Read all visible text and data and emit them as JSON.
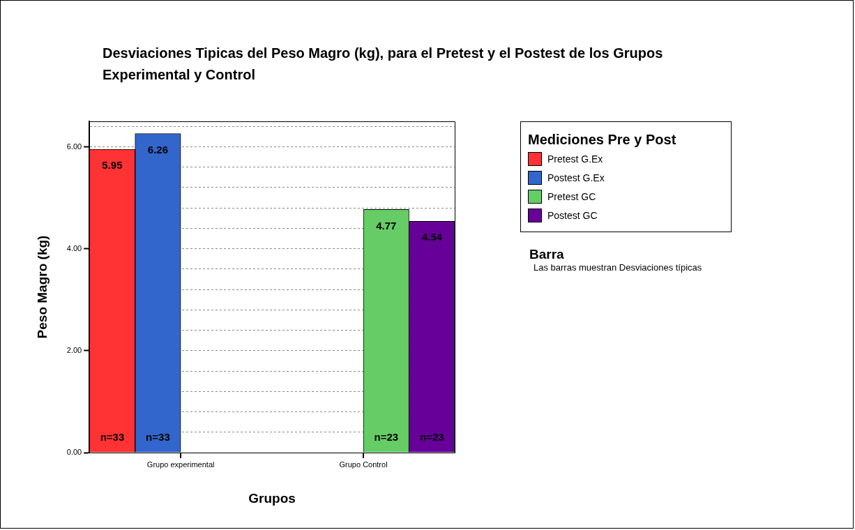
{
  "chart_data": {
    "type": "bar",
    "title": "Desviaciones Tipicas del Peso Magro (kg), para el Pretest y el Postest de los Grupos Experimental y Control",
    "xlabel": "Grupos",
    "ylabel": "Peso Magro (kg)",
    "legend_title": "Mediciones Pre y Post",
    "categories": [
      "Grupo experimental",
      "Grupo Control"
    ],
    "series": [
      {
        "name": "Pretest G.Ex",
        "color": "#ff3333",
        "values": [
          5.95,
          null
        ]
      },
      {
        "name": "Postest G.Ex",
        "color": "#3366cc",
        "values": [
          6.26,
          null
        ]
      },
      {
        "name": "Pretest GC",
        "color": "#66cc66",
        "values": [
          null,
          4.77
        ]
      },
      {
        "name": "Postest GC",
        "color": "#660099",
        "values": [
          null,
          4.54
        ]
      }
    ],
    "ylim": [
      0,
      6.5
    ],
    "yticks": [
      {
        "value": 0,
        "label": "0.00"
      },
      {
        "value": 0.4,
        "label": null
      },
      {
        "value": 0.8,
        "label": null
      },
      {
        "value": 1.2,
        "label": null
      },
      {
        "value": 1.6,
        "label": null
      },
      {
        "value": 2,
        "label": "2.00"
      },
      {
        "value": 2.4,
        "label": null
      },
      {
        "value": 2.8,
        "label": null
      },
      {
        "value": 3.2,
        "label": null
      },
      {
        "value": 3.6,
        "label": null
      },
      {
        "value": 4,
        "label": "4.00"
      },
      {
        "value": 4.4,
        "label": null
      },
      {
        "value": 4.8,
        "label": null
      },
      {
        "value": 5.2,
        "label": null
      },
      {
        "value": 5.6,
        "label": null
      },
      {
        "value": 6,
        "label": "6.00"
      },
      {
        "value": 6.4,
        "label": null
      }
    ],
    "grid": "y",
    "legend": "right",
    "data_labels": true,
    "annotations": [
      "n=33",
      "n=33",
      "n=23",
      "n=23",
      "Barra",
      "Las barras muestran Desviaciones típicas"
    ]
  }
}
